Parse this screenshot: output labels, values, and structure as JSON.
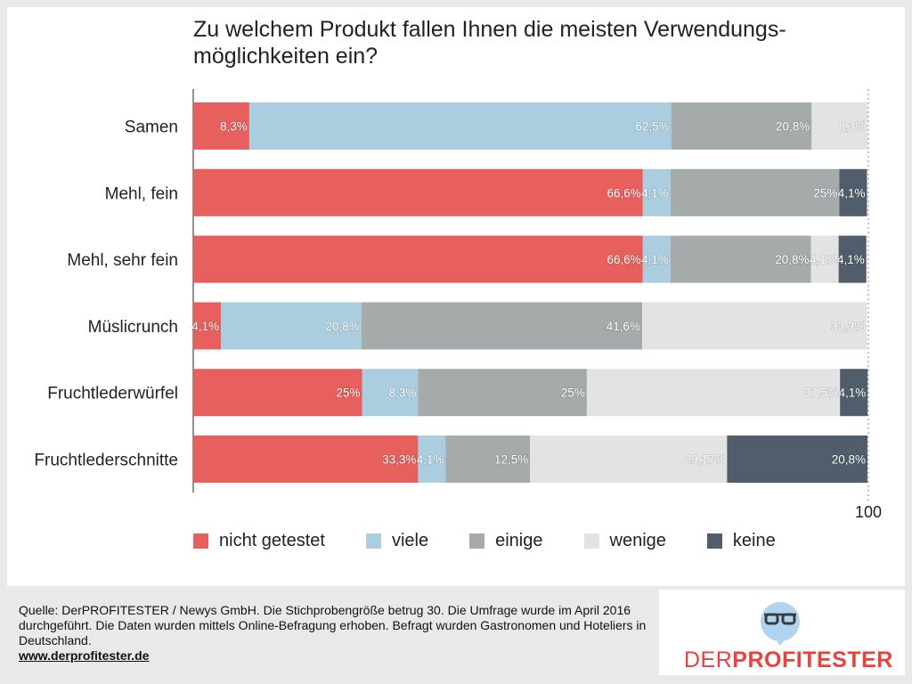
{
  "chart_data": {
    "type": "bar",
    "orientation": "horizontal",
    "stacked": true,
    "title": "Zu welchem Produkt fallen Ihnen die meisten Verwendungs-möglichkeiten ein?",
    "title_lines": [
      "Zu welchem Produkt fallen Ihnen die meisten Verwendungs-",
      "möglichkeiten ein?"
    ],
    "categories": [
      "Samen",
      "Mehl, fein",
      "Mehl, sehr fein",
      "Müslicrunch",
      "Fruchtlederwürfel",
      "Fruchtlederschnitte"
    ],
    "series": [
      {
        "name": "nicht getestet",
        "color": "#e8605d",
        "values": [
          8.3,
          66.6,
          66.6,
          4.1,
          25,
          33.3
        ],
        "labels": [
          "8,3%",
          "66,6%",
          "66,6%",
          "4,1%",
          "25%",
          "33,3%"
        ]
      },
      {
        "name": "viele",
        "color": "#abcde0",
        "values": [
          62.5,
          4.1,
          4.1,
          20.8,
          8.3,
          4.1
        ],
        "labels": [
          "62,5%",
          "4,1%",
          "4,1%",
          "20,8%",
          "8,3%",
          "4,1%"
        ]
      },
      {
        "name": "einige",
        "color": "#a5aaaa",
        "values": [
          20.8,
          25,
          20.8,
          41.6,
          25,
          12.5
        ],
        "labels": [
          "20,8%",
          "25%",
          "20,8%",
          "41,6%",
          "25%",
          "12,5%"
        ]
      },
      {
        "name": "wenige",
        "color": "#e3e3e3",
        "values": [
          8.3,
          0,
          4.1,
          33.3,
          37.5,
          29.17
        ],
        "labels": [
          "8,3%",
          "",
          "4,1%",
          "33,3%",
          "37,5%",
          "29,17%"
        ]
      },
      {
        "name": "keine",
        "color": "#505d6a",
        "values": [
          0,
          4.1,
          4.1,
          0,
          4.1,
          20.8
        ],
        "labels": [
          "",
          "4,1%",
          "4,1%",
          "",
          "4,1%",
          "20,8%"
        ]
      }
    ],
    "xlim": [
      0,
      100
    ],
    "x_tick_label": "100",
    "legend": "bottom",
    "grid": false
  },
  "footer": {
    "source": "Quelle: DerPROFITESTER / Newys GmbH. Die Stichprobengröße betrug 30. Die Umfrage wurde im April 2016 durchgeführt. Die Daten wurden mittels Online-Befragung erhoben. Befragt wurden Gastronomen und Hoteliers in Deutschland.",
    "url": "www.derprofitester.de"
  },
  "logo": {
    "light": "DER",
    "bold": "PROFITESTER",
    "icon": "glasses-speech-bubble-icon",
    "color": "#e8413e"
  }
}
